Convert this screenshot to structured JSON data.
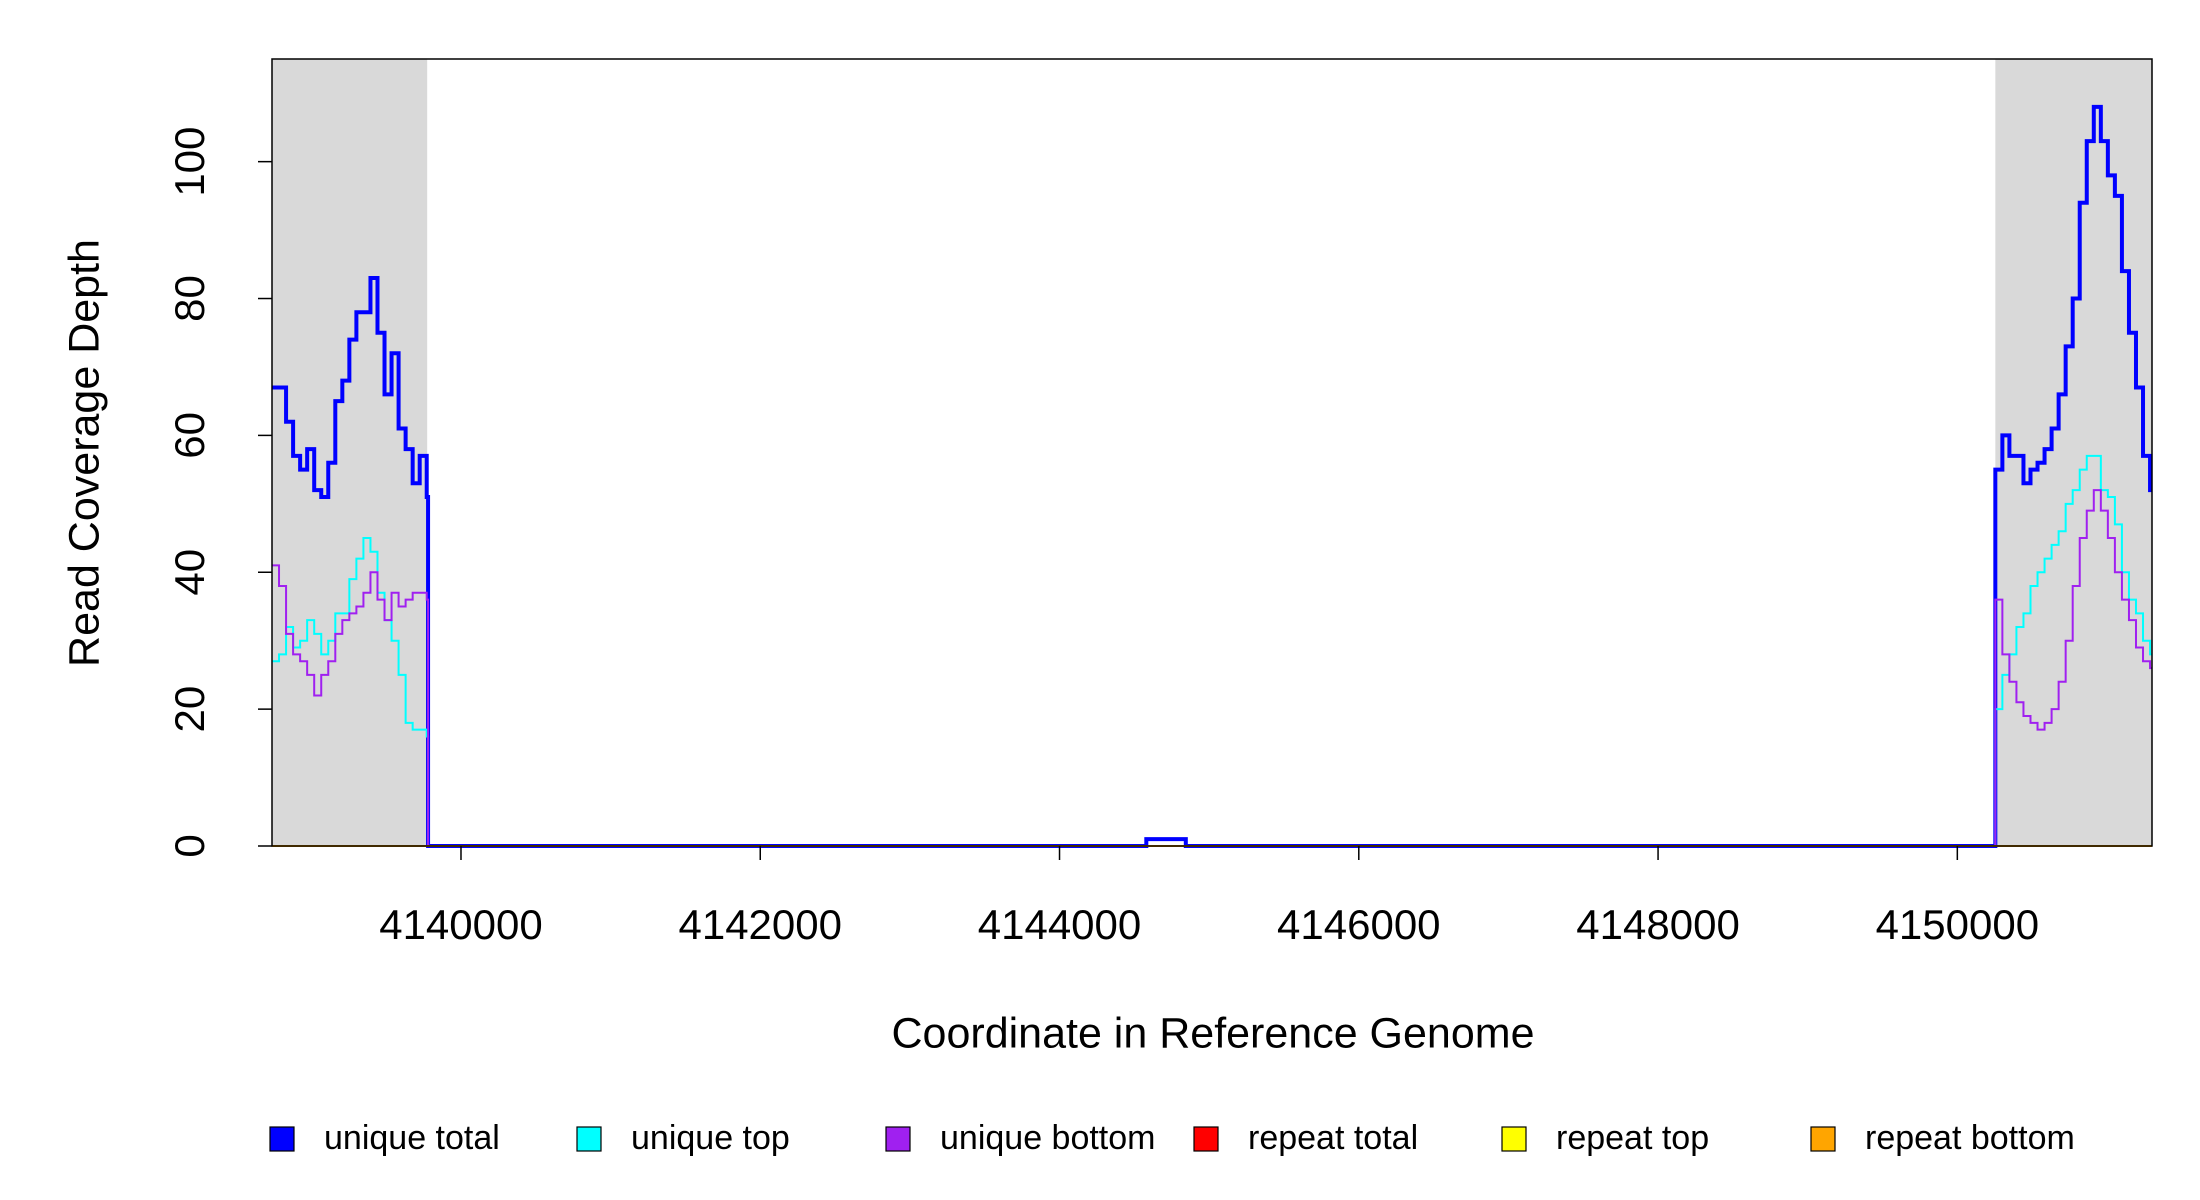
{
  "chart_data": {
    "type": "step",
    "xlabel": "Coordinate in Reference Genome",
    "ylabel": "Read Coverage Depth",
    "xlim": [
      4138737,
      4151301
    ],
    "ylim": [
      0,
      115
    ],
    "xticks": [
      4140000,
      4142000,
      4144000,
      4146000,
      4148000,
      4150000
    ],
    "yticks": [
      0,
      20,
      40,
      60,
      80,
      100
    ],
    "shaded_regions": [
      [
        4138737,
        4139774
      ],
      [
        4150254,
        4151301
      ]
    ],
    "shade_color": "#d9d9d9",
    "legend": "bottom",
    "x": [
      4138737,
      4138784,
      4138831,
      4138878,
      4138925,
      4138972,
      4139019,
      4139066,
      4139113,
      4139160,
      4139207,
      4139254,
      4139301,
      4139348,
      4139395,
      4139442,
      4139489,
      4139536,
      4139583,
      4139630,
      4139677,
      4139724,
      4139771,
      4139780,
      4144580,
      4144844,
      4150254,
      4150301,
      4150348,
      4150395,
      4150442,
      4150489,
      4150536,
      4150583,
      4150630,
      4150677,
      4150724,
      4150771,
      4150818,
      4150865,
      4150912,
      4150959,
      4151006,
      4151053,
      4151100,
      4151147,
      4151194,
      4151241,
      4151288
    ],
    "series": [
      {
        "name": "unique total",
        "color": "#0000ff",
        "width": 4,
        "values": [
          67,
          67,
          62,
          57,
          55,
          58,
          52,
          51,
          56,
          65,
          68,
          74,
          78,
          78,
          83,
          75,
          66,
          72,
          61,
          58,
          53,
          57,
          51,
          0,
          1,
          0,
          55,
          60,
          57,
          57,
          53,
          55,
          56,
          58,
          61,
          66,
          73,
          80,
          94,
          103,
          108,
          103,
          98,
          95,
          84,
          75,
          67,
          57,
          52
        ]
      },
      {
        "name": "unique top",
        "color": "#00ffff",
        "width": 2,
        "values": [
          27,
          28,
          32,
          29,
          30,
          33,
          31,
          28,
          30,
          34,
          34,
          39,
          42,
          45,
          43,
          37,
          33,
          30,
          25,
          18,
          17,
          17,
          16,
          0,
          0,
          0,
          20,
          25,
          28,
          32,
          34,
          38,
          40,
          42,
          44,
          46,
          50,
          52,
          55,
          57,
          57,
          52,
          51,
          47,
          40,
          36,
          34,
          30,
          28
        ]
      },
      {
        "name": "unique bottom",
        "color": "#a020f0",
        "width": 2,
        "values": [
          41,
          38,
          31,
          28,
          27,
          25,
          22,
          25,
          27,
          31,
          33,
          34,
          35,
          37,
          40,
          36,
          33,
          37,
          35,
          36,
          37,
          37,
          36,
          0,
          0,
          0,
          36,
          28,
          24,
          21,
          19,
          18,
          17,
          18,
          20,
          24,
          30,
          38,
          45,
          49,
          52,
          49,
          45,
          40,
          36,
          33,
          29,
          27,
          26
        ]
      },
      {
        "name": "repeat total",
        "color": "#ff0000",
        "width": 2,
        "values": [
          0,
          0,
          0,
          0,
          0,
          0,
          0,
          0,
          0,
          0,
          0,
          0,
          0,
          0,
          0,
          0,
          0,
          0,
          0,
          0,
          0,
          0,
          0,
          0,
          0,
          0,
          0,
          0,
          0,
          0,
          0,
          0,
          0,
          0,
          0,
          0,
          0,
          0,
          0,
          0,
          0,
          0,
          0,
          0,
          0,
          0,
          0,
          0,
          0
        ]
      },
      {
        "name": "repeat top",
        "color": "#ffff00",
        "width": 2,
        "values": [
          0,
          0,
          0,
          0,
          0,
          0,
          0,
          0,
          0,
          0,
          0,
          0,
          0,
          0,
          0,
          0,
          0,
          0,
          0,
          0,
          0,
          0,
          0,
          0,
          0,
          0,
          0,
          0,
          0,
          0,
          0,
          0,
          0,
          0,
          0,
          0,
          0,
          0,
          0,
          0,
          0,
          0,
          0,
          0,
          0,
          0,
          0,
          0,
          0
        ]
      },
      {
        "name": "repeat bottom",
        "color": "#ffa500",
        "width": 2,
        "values": [
          0,
          0,
          0,
          0,
          0,
          0,
          0,
          0,
          0,
          0,
          0,
          0,
          0,
          0,
          0,
          0,
          0,
          0,
          0,
          0,
          0,
          0,
          0,
          0,
          0,
          0,
          0,
          0,
          0,
          0,
          0,
          0,
          0,
          0,
          0,
          0,
          0,
          0,
          0,
          0,
          0,
          0,
          0,
          0,
          0,
          0,
          0,
          0,
          0
        ]
      }
    ]
  }
}
